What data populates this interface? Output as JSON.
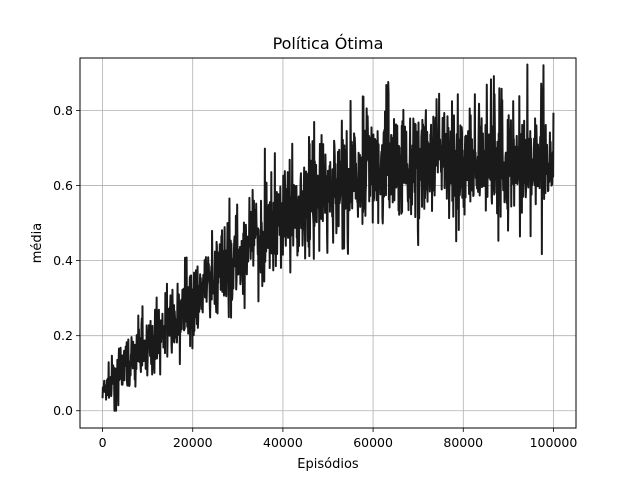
{
  "chart_data": {
    "type": "line",
    "title": "Política Ótima",
    "xlabel": "Episódios",
    "ylabel": "média",
    "xlim": [
      -5000,
      105000
    ],
    "ylim": [
      -0.046,
      0.94
    ],
    "x_ticks": [
      0,
      20000,
      40000,
      60000,
      80000,
      100000
    ],
    "x_tick_labels": [
      "0",
      "20000",
      "40000",
      "60000",
      "80000",
      "100000"
    ],
    "y_ticks": [
      0.0,
      0.2,
      0.4,
      0.6,
      0.8
    ],
    "y_tick_labels": [
      "0.0",
      "0.2",
      "0.4",
      "0.6",
      "0.8"
    ],
    "grid": true,
    "legend": "none",
    "series": [
      {
        "color": "#1a1a1a",
        "x": [
          0,
          2000,
          4000,
          6000,
          8000,
          10000,
          12000,
          14000,
          16000,
          18000,
          20000,
          22000,
          24000,
          26000,
          28000,
          30000,
          32000,
          34000,
          36000,
          38000,
          40000,
          42000,
          44000,
          46000,
          48000,
          50000,
          52000,
          54000,
          56000,
          58000,
          60000,
          62000,
          64000,
          66000,
          68000,
          70000,
          72000,
          74000,
          76000,
          78000,
          80000,
          82000,
          84000,
          86000,
          88000,
          90000,
          92000,
          94000,
          96000,
          98000,
          100000
        ],
        "mean": [
          0.05,
          0.07,
          0.1,
          0.13,
          0.15,
          0.17,
          0.19,
          0.22,
          0.24,
          0.26,
          0.29,
          0.31,
          0.34,
          0.36,
          0.39,
          0.41,
          0.44,
          0.46,
          0.48,
          0.5,
          0.52,
          0.54,
          0.55,
          0.56,
          0.57,
          0.58,
          0.6,
          0.61,
          0.62,
          0.63,
          0.64,
          0.64,
          0.65,
          0.65,
          0.66,
          0.66,
          0.67,
          0.67,
          0.67,
          0.67,
          0.67,
          0.67,
          0.67,
          0.67,
          0.67,
          0.67,
          0.67,
          0.67,
          0.67,
          0.67,
          0.67
        ],
        "low": [
          0.02,
          0.02,
          0.04,
          0.06,
          0.08,
          0.1,
          0.12,
          0.14,
          0.16,
          0.18,
          0.2,
          0.22,
          0.25,
          0.26,
          0.28,
          0.3,
          0.33,
          0.35,
          0.37,
          0.38,
          0.4,
          0.41,
          0.42,
          0.43,
          0.45,
          0.47,
          0.48,
          0.49,
          0.5,
          0.5,
          0.51,
          0.51,
          0.52,
          0.52,
          0.52,
          0.52,
          0.53,
          0.53,
          0.53,
          0.53,
          0.53,
          0.53,
          0.53,
          0.53,
          0.53,
          0.53,
          0.53,
          0.53,
          0.53,
          0.53,
          0.53
        ],
        "high": [
          0.08,
          0.12,
          0.16,
          0.19,
          0.21,
          0.23,
          0.26,
          0.29,
          0.31,
          0.34,
          0.37,
          0.4,
          0.44,
          0.47,
          0.5,
          0.52,
          0.55,
          0.57,
          0.6,
          0.62,
          0.64,
          0.66,
          0.67,
          0.69,
          0.7,
          0.71,
          0.73,
          0.74,
          0.75,
          0.76,
          0.77,
          0.77,
          0.78,
          0.78,
          0.79,
          0.79,
          0.8,
          0.8,
          0.8,
          0.8,
          0.8,
          0.8,
          0.8,
          0.8,
          0.8,
          0.8,
          0.8,
          0.8,
          0.8,
          0.8,
          0.8
        ],
        "y_min": 0.0,
        "y_max": 0.93
      }
    ]
  }
}
